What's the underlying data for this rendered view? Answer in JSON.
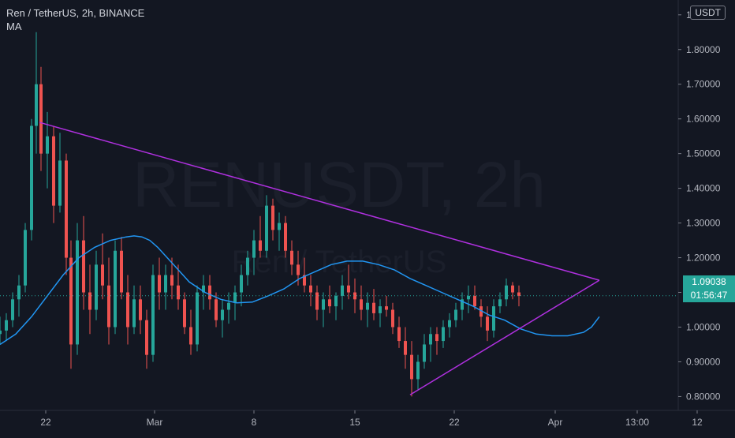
{
  "legend": {
    "symbol_line": "Ren / TetherUS, 2h, BINANCE",
    "indicator": "MA"
  },
  "watermark": {
    "ticker": "RENUSDT, 2h",
    "name": "Ren / TetherUS"
  },
  "currency": "USDT",
  "last_price": {
    "value": "1.09038",
    "countdown": "01:56:47"
  },
  "colors": {
    "background": "#131722",
    "up": "#26a69a",
    "down": "#ef5350",
    "ma": "#2196f3",
    "trendline": "#b030e0",
    "axis_text": "#b2b5be",
    "grid_line": "#2a2e39",
    "price_line": "#26a69a"
  },
  "chart_data": {
    "type": "candlestick",
    "title": "Ren / TetherUS, 2h, BINANCE",
    "x_tick_labels": [
      "22",
      "Mar",
      "8",
      "15",
      "22",
      "Apr",
      "13:00",
      "12"
    ],
    "y_tick_labels": [
      "0.80000",
      "0.90000",
      "1.00000",
      "1.10000",
      "1.20000",
      "1.30000",
      "1.40000",
      "1.50000",
      "1.60000",
      "1.70000",
      "1.80000",
      "1.90000"
    ],
    "ylim": [
      0.76,
      1.92
    ],
    "x_range_days": [
      18,
      61
    ],
    "series": [
      {
        "name": "MA",
        "type": "line",
        "points": [
          [
            18,
            0.95
          ],
          [
            19,
            0.98
          ],
          [
            20,
            1.03
          ],
          [
            21,
            1.09
          ],
          [
            22,
            1.15
          ],
          [
            23,
            1.2
          ],
          [
            24,
            1.23
          ],
          [
            25,
            1.25
          ],
          [
            26,
            1.26
          ],
          [
            26.5,
            1.263
          ],
          [
            27,
            1.26
          ],
          [
            27.5,
            1.25
          ],
          [
            28,
            1.23
          ],
          [
            29,
            1.18
          ],
          [
            30,
            1.13
          ],
          [
            31,
            1.1
          ],
          [
            32,
            1.08
          ],
          [
            33,
            1.07
          ],
          [
            34,
            1.072
          ],
          [
            35,
            1.09
          ],
          [
            36,
            1.11
          ],
          [
            37,
            1.14
          ],
          [
            38,
            1.16
          ],
          [
            39,
            1.18
          ],
          [
            40,
            1.19
          ],
          [
            41,
            1.19
          ],
          [
            42,
            1.18
          ],
          [
            43,
            1.165
          ],
          [
            44,
            1.14
          ],
          [
            45,
            1.12
          ],
          [
            46,
            1.1
          ],
          [
            47,
            1.08
          ],
          [
            48,
            1.06
          ],
          [
            49,
            1.035
          ],
          [
            50,
            1.02
          ],
          [
            51,
            0.995
          ],
          [
            52,
            0.98
          ],
          [
            53,
            0.975
          ],
          [
            54,
            0.975
          ],
          [
            55,
            0.985
          ],
          [
            55.5,
            1.0
          ],
          [
            56,
            1.03
          ]
        ]
      }
    ],
    "candles": [
      [
        18.0,
        0.98,
        1.03,
        0.95,
        0.99
      ],
      [
        18.4,
        0.99,
        1.04,
        0.96,
        1.02
      ],
      [
        18.8,
        1.02,
        1.1,
        1.0,
        1.08
      ],
      [
        19.2,
        1.08,
        1.15,
        1.03,
        1.12
      ],
      [
        19.6,
        1.12,
        1.3,
        1.1,
        1.28
      ],
      [
        20.0,
        1.28,
        1.6,
        1.25,
        1.58
      ],
      [
        20.3,
        1.58,
        1.85,
        1.5,
        1.7
      ],
      [
        20.6,
        1.7,
        1.75,
        1.45,
        1.5
      ],
      [
        21.0,
        1.5,
        1.62,
        1.4,
        1.55
      ],
      [
        21.4,
        1.55,
        1.58,
        1.3,
        1.35
      ],
      [
        21.8,
        1.35,
        1.56,
        1.33,
        1.48
      ],
      [
        22.2,
        1.48,
        1.5,
        1.15,
        1.2
      ],
      [
        22.5,
        1.2,
        1.25,
        0.88,
        0.95
      ],
      [
        22.9,
        0.95,
        1.3,
        0.92,
        1.25
      ],
      [
        23.3,
        1.25,
        1.32,
        1.05,
        1.1
      ],
      [
        23.7,
        1.1,
        1.18,
        0.98,
        1.05
      ],
      [
        24.1,
        1.05,
        1.22,
        1.02,
        1.18
      ],
      [
        24.5,
        1.18,
        1.27,
        1.08,
        1.12
      ],
      [
        24.9,
        1.12,
        1.2,
        0.95,
        1.0
      ],
      [
        25.3,
        1.0,
        1.25,
        0.98,
        1.22
      ],
      [
        25.7,
        1.22,
        1.26,
        1.08,
        1.1
      ],
      [
        26.1,
        1.1,
        1.15,
        0.95,
        1.0
      ],
      [
        26.5,
        1.0,
        1.12,
        0.98,
        1.08
      ],
      [
        26.9,
        1.08,
        1.12,
        0.98,
        1.02
      ],
      [
        27.3,
        1.02,
        1.05,
        0.88,
        0.92
      ],
      [
        27.7,
        0.92,
        1.18,
        0.9,
        1.15
      ],
      [
        28.1,
        1.15,
        1.2,
        1.05,
        1.1
      ],
      [
        28.5,
        1.1,
        1.18,
        1.05,
        1.15
      ],
      [
        28.9,
        1.15,
        1.2,
        1.08,
        1.12
      ],
      [
        29.3,
        1.12,
        1.18,
        1.05,
        1.08
      ],
      [
        29.7,
        1.08,
        1.1,
        0.98,
        1.0
      ],
      [
        30.1,
        1.0,
        1.05,
        0.92,
        0.95
      ],
      [
        30.5,
        0.95,
        1.12,
        0.93,
        1.1
      ],
      [
        30.9,
        1.1,
        1.15,
        1.05,
        1.12
      ],
      [
        31.3,
        1.12,
        1.15,
        1.05,
        1.08
      ],
      [
        31.7,
        1.08,
        1.1,
        1.0,
        1.02
      ],
      [
        32.1,
        1.02,
        1.08,
        0.97,
        1.05
      ],
      [
        32.5,
        1.05,
        1.1,
        1.01,
        1.07
      ],
      [
        32.9,
        1.07,
        1.12,
        1.02,
        1.1
      ],
      [
        33.3,
        1.1,
        1.18,
        1.06,
        1.15
      ],
      [
        33.7,
        1.15,
        1.22,
        1.12,
        1.2
      ],
      [
        34.1,
        1.2,
        1.28,
        1.15,
        1.25
      ],
      [
        34.5,
        1.25,
        1.32,
        1.2,
        1.22
      ],
      [
        34.9,
        1.22,
        1.38,
        1.2,
        1.35
      ],
      [
        35.3,
        1.35,
        1.37,
        1.25,
        1.28
      ],
      [
        35.7,
        1.28,
        1.33,
        1.22,
        1.3
      ],
      [
        36.1,
        1.3,
        1.32,
        1.2,
        1.22
      ],
      [
        36.5,
        1.22,
        1.25,
        1.15,
        1.18
      ],
      [
        36.9,
        1.18,
        1.22,
        1.12,
        1.15
      ],
      [
        37.3,
        1.15,
        1.2,
        1.1,
        1.12
      ],
      [
        37.7,
        1.12,
        1.15,
        1.06,
        1.1
      ],
      [
        38.1,
        1.1,
        1.12,
        1.02,
        1.05
      ],
      [
        38.5,
        1.05,
        1.1,
        1.0,
        1.08
      ],
      [
        38.9,
        1.08,
        1.12,
        1.04,
        1.06
      ],
      [
        39.3,
        1.06,
        1.1,
        1.02,
        1.09
      ],
      [
        39.7,
        1.09,
        1.15,
        1.05,
        1.12
      ],
      [
        40.1,
        1.12,
        1.18,
        1.08,
        1.1
      ],
      [
        40.5,
        1.1,
        1.14,
        1.04,
        1.08
      ],
      [
        40.9,
        1.08,
        1.12,
        1.02,
        1.05
      ],
      [
        41.3,
        1.05,
        1.1,
        1.0,
        1.07
      ],
      [
        41.7,
        1.07,
        1.11,
        1.02,
        1.04
      ],
      [
        42.1,
        1.04,
        1.08,
        1.0,
        1.06
      ],
      [
        42.5,
        1.06,
        1.09,
        1.03,
        1.05
      ],
      [
        42.9,
        1.05,
        1.07,
        0.98,
        1.0
      ],
      [
        43.3,
        1.0,
        1.03,
        0.94,
        0.96
      ],
      [
        43.7,
        0.96,
        1.0,
        0.88,
        0.92
      ],
      [
        44.1,
        0.92,
        0.96,
        0.8,
        0.85
      ],
      [
        44.5,
        0.85,
        0.92,
        0.82,
        0.9
      ],
      [
        44.9,
        0.9,
        0.98,
        0.88,
        0.95
      ],
      [
        45.3,
        0.95,
        1.0,
        0.9,
        0.98
      ],
      [
        45.7,
        0.98,
        1.0,
        0.92,
        0.96
      ],
      [
        46.1,
        0.96,
        1.02,
        0.94,
        1.0
      ],
      [
        46.5,
        1.0,
        1.04,
        0.97,
        1.02
      ],
      [
        46.9,
        1.02,
        1.07,
        1.0,
        1.05
      ],
      [
        47.3,
        1.05,
        1.1,
        1.02,
        1.08
      ],
      [
        47.7,
        1.08,
        1.12,
        1.04,
        1.09
      ],
      [
        48.1,
        1.09,
        1.12,
        1.05,
        1.06
      ],
      [
        48.5,
        1.06,
        1.08,
        1.0,
        1.03
      ],
      [
        48.9,
        1.03,
        1.06,
        0.96,
        0.99
      ],
      [
        49.3,
        0.99,
        1.08,
        0.97,
        1.06
      ],
      [
        49.7,
        1.06,
        1.1,
        1.04,
        1.08
      ],
      [
        50.1,
        1.08,
        1.14,
        1.06,
        1.12
      ],
      [
        50.5,
        1.12,
        1.13,
        1.08,
        1.1
      ],
      [
        50.9,
        1.1,
        1.12,
        1.06,
        1.09
      ]
    ],
    "trendlines": [
      {
        "from": [
          20.5,
          1.59
        ],
        "to": [
          56.0,
          1.135
        ]
      },
      {
        "from": [
          44.0,
          0.805
        ],
        "to": [
          56.0,
          1.135
        ]
      }
    ]
  }
}
